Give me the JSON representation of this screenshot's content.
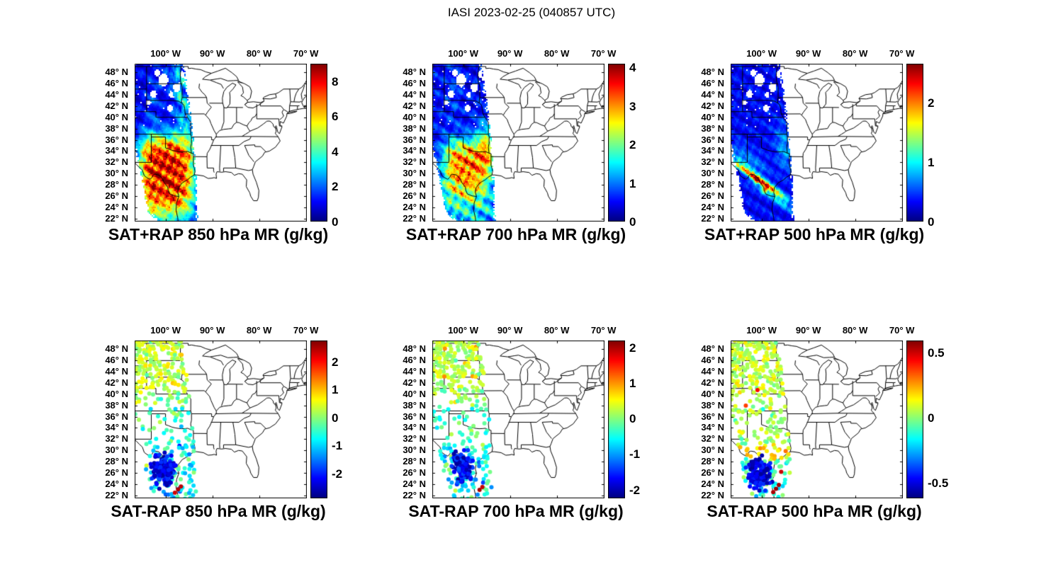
{
  "figure_title": "IASI 2023-02-25 (040857 UTC)",
  "map": {
    "lon_min_deg_e": -106.6,
    "lon_max_deg_e": -69.8,
    "lat_min_deg_n": 21.5,
    "lat_max_deg_n": 49.5
  },
  "axes": {
    "lon_ticks": [
      {
        "lon": -100,
        "label": "100° W"
      },
      {
        "lon": -90,
        "label": "90° W"
      },
      {
        "lon": -80,
        "label": "80° W"
      },
      {
        "lon": -70,
        "label": "70° W"
      }
    ],
    "lat_ticks": [
      {
        "lat": 48,
        "label": "48° N"
      },
      {
        "lat": 46,
        "label": "46° N"
      },
      {
        "lat": 44,
        "label": "44° N"
      },
      {
        "lat": 42,
        "label": "42° N"
      },
      {
        "lat": 40,
        "label": "40° N"
      },
      {
        "lat": 38,
        "label": "38° N"
      },
      {
        "lat": 36,
        "label": "36° N"
      },
      {
        "lat": 34,
        "label": "34° N"
      },
      {
        "lat": 32,
        "label": "32° N"
      },
      {
        "lat": 30,
        "label": "30° N"
      },
      {
        "lat": 28,
        "label": "28° N"
      },
      {
        "lat": 26,
        "label": "26° N"
      },
      {
        "lat": 24,
        "label": "24° N"
      },
      {
        "lat": 22,
        "label": "22° N"
      }
    ]
  },
  "panels": [
    {
      "id": "sat_plus_rap_850",
      "kind": "fill",
      "title": "SAT+RAP 850 hPa MR (g/kg)",
      "colorbar": {
        "min": 0,
        "max": 9,
        "ticks": [
          {
            "v": 8,
            "label": "8"
          },
          {
            "v": 6,
            "label": "6"
          },
          {
            "v": 4,
            "label": "4"
          },
          {
            "v": 2,
            "label": "2"
          },
          {
            "v": 0,
            "label": "0"
          }
        ]
      }
    },
    {
      "id": "sat_plus_rap_700",
      "kind": "fill",
      "title": "SAT+RAP 700 hPa MR (g/kg)",
      "colorbar": {
        "min": 0,
        "max": 4.1,
        "ticks": [
          {
            "v": 4,
            "label": "4"
          },
          {
            "v": 3,
            "label": "3"
          },
          {
            "v": 2,
            "label": "2"
          },
          {
            "v": 1,
            "label": "1"
          },
          {
            "v": 0,
            "label": "0"
          }
        ]
      }
    },
    {
      "id": "sat_plus_rap_500",
      "kind": "fill",
      "title": "SAT+RAP 500 hPa MR (g/kg)",
      "colorbar": {
        "min": 0,
        "max": 2.65,
        "ticks": [
          {
            "v": 2,
            "label": "2"
          },
          {
            "v": 1,
            "label": "1"
          },
          {
            "v": 0,
            "label": "0"
          }
        ]
      }
    },
    {
      "id": "sat_minus_rap_850",
      "kind": "dots",
      "title": "SAT-RAP 850 hPa MR (g/kg)",
      "colorbar": {
        "min": -2.9,
        "max": 2.75,
        "ticks": [
          {
            "v": 2,
            "label": "2"
          },
          {
            "v": 1,
            "label": "1"
          },
          {
            "v": 0,
            "label": "0"
          },
          {
            "v": -1,
            "label": "-1"
          },
          {
            "v": -2,
            "label": "-2"
          }
        ]
      }
    },
    {
      "id": "sat_minus_rap_700",
      "kind": "dots",
      "title": "SAT-RAP 700 hPa MR (g/kg)",
      "colorbar": {
        "min": -2.25,
        "max": 2.2,
        "ticks": [
          {
            "v": 2,
            "label": "2"
          },
          {
            "v": 1,
            "label": "1"
          },
          {
            "v": 0,
            "label": "0"
          },
          {
            "v": -1,
            "label": "-1"
          },
          {
            "v": -2,
            "label": "-2"
          }
        ]
      }
    },
    {
      "id": "sat_minus_rap_500",
      "kind": "dots",
      "title": "SAT-RAP 500 hPa MR (g/kg)",
      "colorbar": {
        "min": -0.62,
        "max": 0.59,
        "ticks": [
          {
            "v": 0.5,
            "label": "0.5"
          },
          {
            "v": 0,
            "label": "0"
          },
          {
            "v": -0.5,
            "label": "-0.5"
          }
        ]
      }
    }
  ],
  "colors": {
    "background": "#ffffff",
    "map_outline": "#000000",
    "text": "#000000",
    "colormap": "jet",
    "colormap_low": "#000080",
    "colormap_high": "#800000"
  },
  "chart_data": [
    {
      "type": "heatmap",
      "title": "SAT+RAP 850 hPa MR (g/kg)",
      "x_ticks_deg_w": [
        100,
        90,
        80,
        70
      ],
      "y_ticks_deg_n": [
        48,
        46,
        44,
        42,
        40,
        38,
        36,
        34,
        32,
        30,
        28,
        26,
        24,
        22
      ],
      "lon_range_deg_w": [
        106.6,
        69.8
      ],
      "lat_range_deg_n": [
        21.5,
        49.5
      ],
      "colorbar_range": [
        0,
        9
      ],
      "colorbar_ticks": [
        0,
        2,
        4,
        6,
        8
      ],
      "colormap": "jet",
      "summary": "IASI satellite swath from ~49N to 22N between ~106W and ~93W; mixing ratio 0-2 g/kg (dark blue) north of ~38N with a green streak along the east swath edge; broad maximum above 8 g/kg (dark red) over central/south Texas and northeast Mexico with yellow-green fringe."
    },
    {
      "type": "heatmap",
      "title": "SAT+RAP 700 hPa MR (g/kg)",
      "x_ticks_deg_w": [
        100,
        90,
        80,
        70
      ],
      "y_ticks_deg_n": [
        48,
        46,
        44,
        42,
        40,
        38,
        36,
        34,
        32,
        30,
        28,
        26,
        24,
        22
      ],
      "lon_range_deg_w": [
        106.6,
        69.8
      ],
      "lat_range_deg_n": [
        21.5,
        49.5
      ],
      "colorbar_range": [
        0,
        4.1
      ],
      "colorbar_ticks": [
        0,
        1,
        2,
        3,
        4
      ],
      "colormap": "jet",
      "summary": "Same swath; ~0.5-1 g/kg (blue) north of 38N; maximum near 4 g/kg (red) over south-central Texas ~27-35N surrounded by orange/yellow/green; greener values near the south end of the swath."
    },
    {
      "type": "heatmap",
      "title": "SAT+RAP 500 hPa MR (g/kg)",
      "x_ticks_deg_w": [
        100,
        90,
        80,
        70
      ],
      "y_ticks_deg_n": [
        48,
        46,
        44,
        42,
        40,
        38,
        36,
        34,
        32,
        30,
        28,
        26,
        24,
        22
      ],
      "lon_range_deg_w": [
        106.6,
        69.8
      ],
      "lat_range_deg_n": [
        21.5,
        49.5
      ],
      "colorbar_range": [
        0,
        2.65
      ],
      "colorbar_ticks": [
        0,
        1,
        2
      ],
      "colormap": "jet",
      "summary": "Mostly 0-0.5 g/kg (dark blue); narrow orange-red ridge of ~2-2.5 g/kg sloping southwest-to-southeast from west Texas (~31N 104W) toward ~26N 97W; faint cyan streak near east swath edge 32-37N."
    },
    {
      "type": "scatter",
      "title": "SAT-RAP 850 hPa MR (g/kg)",
      "x_ticks_deg_w": [
        100,
        90,
        80,
        70
      ],
      "y_ticks_deg_n": [
        48,
        46,
        44,
        42,
        40,
        38,
        36,
        34,
        32,
        30,
        28,
        26,
        24,
        22
      ],
      "lon_range_deg_w": [
        106.6,
        69.8
      ],
      "lat_range_deg_n": [
        21.5,
        49.5
      ],
      "colorbar_range": [
        -2.9,
        2.75
      ],
      "colorbar_ticks": [
        -2,
        -1,
        0,
        1,
        2
      ],
      "colormap": "jet",
      "summary": "Scattered retrieval-minus-model dots: near 0 to +1 (green) over the northern plains with white data gaps; slightly negative (cyan) 33-42N; dense cluster of strong negative dots (-2 to -3, dark blue) over south Texas / northeast Mexico 23-30N; a few +2 (red) dots near 23N 97W."
    },
    {
      "type": "scatter",
      "title": "SAT-RAP 700 hPa MR (g/kg)",
      "x_ticks_deg_w": [
        100,
        90,
        80,
        70
      ],
      "y_ticks_deg_n": [
        48,
        46,
        44,
        42,
        40,
        38,
        36,
        34,
        32,
        30,
        28,
        26,
        24,
        22
      ],
      "lon_range_deg_w": [
        106.6,
        69.8
      ],
      "lat_range_deg_n": [
        21.5,
        49.5
      ],
      "colorbar_range": [
        -2.25,
        2.2
      ],
      "colorbar_ticks": [
        -2,
        -1,
        0,
        1,
        2
      ],
      "colormap": "jet",
      "summary": "Mostly small positive (green) differences in the north with occasional yellow specks 37-41N; cyan/green mix over Texas; cluster of -1.5 to -2 (dark blue) dots 25-29N; isolated +2 (dark red) dot near 23N 96.5W."
    },
    {
      "type": "scatter",
      "title": "SAT-RAP 500 hPa MR (g/kg)",
      "x_ticks_deg_w": [
        100,
        90,
        80,
        70
      ],
      "y_ticks_deg_n": [
        48,
        46,
        44,
        42,
        40,
        38,
        36,
        34,
        32,
        30,
        28,
        26,
        24,
        22
      ],
      "lon_range_deg_w": [
        106.6,
        69.8
      ],
      "lat_range_deg_n": [
        21.5,
        49.5
      ],
      "colorbar_range": [
        -0.62,
        0.59
      ],
      "colorbar_ticks": [
        -0.5,
        0,
        0.5
      ],
      "colormap": "jet",
      "summary": "Near-zero (green) differences over the north with orange/red specks 38-41N near 102-104W; yellow band near 29-31N; dense cluster of -0.5 (dark blue) dots 24-28N; a few +0.5 (dark red) dots near the southeast swath edge ~23N 97W."
    }
  ]
}
